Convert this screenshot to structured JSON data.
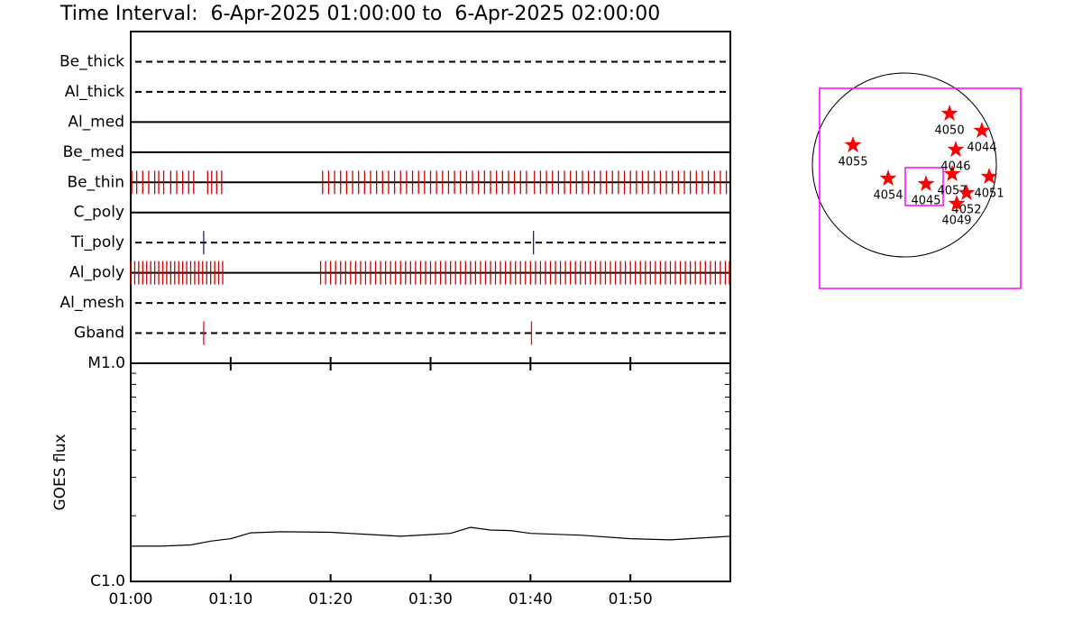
{
  "title": "Time Interval:  6-Apr-2025 01:00:00 to  6-Apr-2025 02:00:00",
  "chart_data": [
    {
      "type": "timeline",
      "categories": [
        "Be_thick",
        "Al_thick",
        "Al_med",
        "Be_med",
        "Be_thin",
        "C_poly",
        "Ti_poly",
        "Al_poly",
        "Al_mesh",
        "Gband"
      ],
      "line_styles": [
        "dashed",
        "dashed",
        "solid",
        "solid",
        "solid",
        "solid",
        "dashed",
        "solid",
        "dashed",
        "dashed"
      ],
      "events": [
        null,
        null,
        null,
        null,
        {
          "color": "#cc0000",
          "x": [
            0.1,
            0.6,
            1.2,
            1.8,
            2.4,
            2.8,
            3.3,
            4.0,
            4.6,
            5.2,
            5.8,
            6.3,
            7.7,
            8.1,
            8.6,
            9.1,
            19.2,
            19.8,
            20.4,
            21.0,
            21.6,
            22.2,
            22.8,
            23.4,
            24.0,
            24.6,
            25.2,
            25.8,
            26.4,
            27.0,
            27.6,
            28.2,
            28.8,
            29.4,
            30.0,
            30.6,
            31.2,
            31.8,
            32.4,
            33.0,
            33.6,
            34.2,
            34.8,
            35.4,
            36.0,
            36.6,
            37.2,
            37.8,
            38.4,
            39.0,
            39.6,
            40.4,
            41.0,
            41.6,
            42.2,
            42.8,
            43.4,
            44.0,
            44.6,
            45.2,
            45.8,
            46.4,
            47.0,
            47.6,
            48.2,
            48.8,
            49.4,
            50.0,
            50.6,
            51.2,
            51.8,
            52.4,
            53.0,
            53.6,
            54.2,
            54.8,
            55.4,
            56.0,
            56.6,
            57.2,
            57.8,
            58.4,
            59.0,
            59.6
          ]
        },
        null,
        {
          "color": "#1a1a9a",
          "x": [
            7.3,
            40.3
          ]
        },
        {
          "color": "#cc0000",
          "x": [
            0.0,
            0.4,
            0.8,
            1.2,
            1.6,
            2.0,
            2.4,
            2.8,
            3.2,
            3.6,
            4.0,
            4.4,
            4.8,
            5.2,
            5.6,
            6.0,
            6.4,
            6.8,
            7.2,
            7.6,
            8.0,
            8.4,
            8.8,
            9.2,
            19,
            19.5,
            20,
            20.5,
            21,
            21.5,
            22,
            22.5,
            23,
            23.5,
            24,
            24.5,
            25,
            25.5,
            26,
            26.5,
            27,
            27.5,
            28,
            28.5,
            29,
            29.5,
            30,
            30.5,
            31,
            31.5,
            32,
            32.5,
            33,
            33.5,
            34,
            34.5,
            35,
            35.5,
            36,
            36.5,
            37,
            37.5,
            38,
            38.5,
            39,
            39.5,
            40,
            40.5,
            41,
            41.5,
            42,
            42.5,
            43,
            43.5,
            44,
            44.5,
            45,
            45.5,
            46,
            46.5,
            47,
            47.5,
            48,
            48.5,
            49,
            49.5,
            50,
            50.5,
            51,
            51.5,
            52,
            52.5,
            53,
            53.5,
            54,
            54.5,
            55,
            55.5,
            56,
            56.5,
            57,
            57.5,
            58,
            58.5,
            59,
            59.5,
            59.9
          ]
        },
        null,
        {
          "color": "#ff0000",
          "x": [
            7.3,
            40.1
          ]
        }
      ],
      "xlim": [
        0,
        60
      ],
      "xticks": [
        0,
        10,
        20,
        30,
        40,
        50
      ]
    },
    {
      "type": "line",
      "ylabel": "GOES flux",
      "log_scale": true,
      "color": "#000000",
      "x": [
        0,
        3,
        6,
        8,
        10,
        12,
        15,
        20,
        24,
        27,
        30,
        32,
        34,
        36,
        38,
        40,
        45,
        50,
        54,
        60
      ],
      "values": [
        1.45e-06,
        1.45e-06,
        1.47e-06,
        1.53e-06,
        1.57e-06,
        1.67e-06,
        1.69e-06,
        1.68e-06,
        1.64e-06,
        1.61e-06,
        1.64e-06,
        1.66e-06,
        1.77e-06,
        1.72e-06,
        1.71e-06,
        1.66e-06,
        1.63e-06,
        1.57e-06,
        1.55e-06,
        1.61e-06
      ],
      "xlim": [
        0,
        60
      ],
      "xticks": [
        {
          "value": 0,
          "label": "01:00"
        },
        {
          "value": 10,
          "label": "01:10"
        },
        {
          "value": 20,
          "label": "01:20"
        },
        {
          "value": 30,
          "label": "01:30"
        },
        {
          "value": 40,
          "label": "01:40"
        },
        {
          "value": 50,
          "label": "01:50"
        }
      ],
      "ylim": [
        1e-06,
        1e-05
      ],
      "yticks": [
        {
          "value": 1e-06,
          "label": "C1.0"
        },
        {
          "value": 1e-05,
          "label": "M1.0"
        }
      ],
      "minor_yticks": [
        2e-06,
        3e-06,
        4e-06,
        5e-06,
        6e-06,
        7e-06,
        8e-06,
        9e-06
      ]
    },
    {
      "type": "map",
      "disk_radius": 960,
      "disk_color": "#000000",
      "boxes": [
        {
          "x": [
            -885,
            1214
          ],
          "y": [
            -1289,
            800
          ],
          "color": "#ff00ff"
        },
        {
          "x": [
            9,
            405
          ],
          "y": [
            -423,
            -28
          ],
          "color": "#ff00ff"
        }
      ],
      "marker_color": "#ff0000",
      "labels": [
        "4055",
        "4054",
        "4045",
        "4057",
        "4050",
        "4044",
        "4046",
        "4051",
        "4052",
        "4049"
      ],
      "x": [
        -536,
        -169,
        226,
        499,
        471,
        809,
        536,
        885,
        649,
        546
      ],
      "y": [
        207,
        -141,
        -198,
        -94,
        536,
        358,
        160,
        -122,
        -292,
        -405
      ]
    }
  ]
}
